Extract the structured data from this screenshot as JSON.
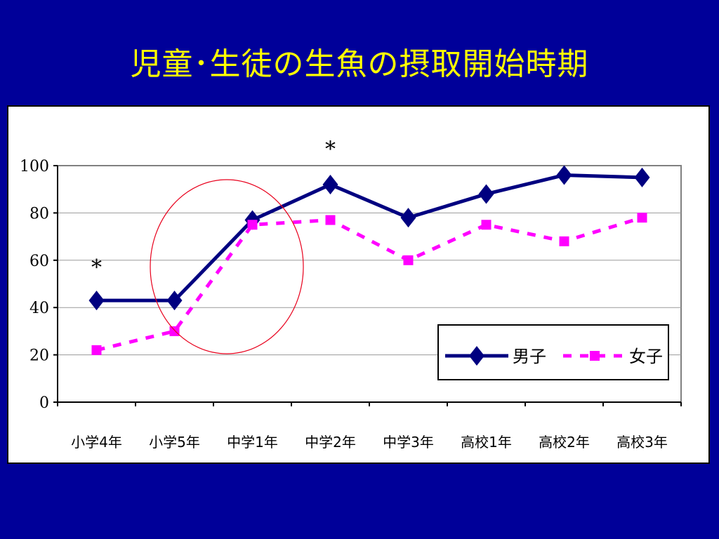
{
  "slide": {
    "title": "児童･生徒の生魚の摂取開始時期"
  },
  "colors": {
    "background": "#000099",
    "title": "#ffff00",
    "male_series": "#000080",
    "female_series": "#ff00ff",
    "highlight_circle": "#e8001c"
  },
  "chart_data": {
    "type": "line",
    "title": "",
    "xlabel": "",
    "ylabel": "",
    "categories": [
      "小学4年",
      "小学5年",
      "中学1年",
      "中学2年",
      "中学3年",
      "高校1年",
      "高校2年",
      "高校3年"
    ],
    "ylim": [
      0,
      100
    ],
    "yticks": [
      0,
      20,
      40,
      60,
      80,
      100
    ],
    "grid": true,
    "series": [
      {
        "name": "男子",
        "marker": "diamond",
        "line_style": "solid",
        "color": "#000080",
        "values": [
          43,
          43,
          77,
          92,
          78,
          88,
          96,
          95
        ]
      },
      {
        "name": "女子",
        "marker": "square",
        "line_style": "dashed",
        "color": "#ff00ff",
        "values": [
          22,
          30,
          75,
          77,
          60,
          75,
          68,
          78
        ]
      }
    ],
    "annotations": [
      {
        "text": "*",
        "category": "小学4年",
        "y": 60
      },
      {
        "text": "*",
        "category": "中学2年",
        "y": 110
      }
    ],
    "legend_position": "bottom-right",
    "highlight": "circle around 小学5年–中学1年"
  }
}
